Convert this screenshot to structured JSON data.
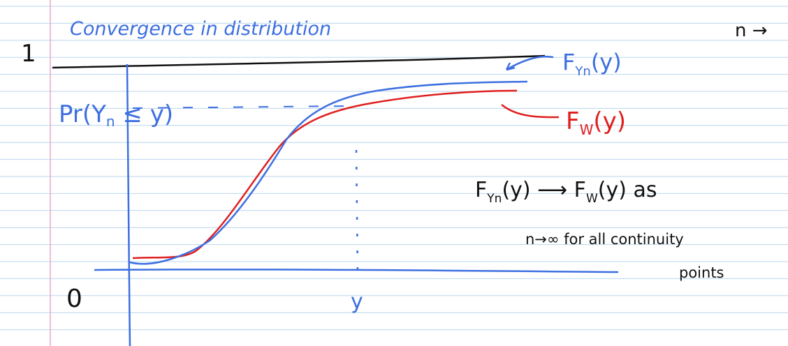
{
  "title": "Convergence in distribution",
  "corner_note": "n →",
  "axis": {
    "one": "1",
    "zero": "0",
    "y_marker": "y"
  },
  "prob_label": {
    "prefix": "Pr(Y",
    "sub": "n",
    "suffix": " ≤ y)"
  },
  "curve_labels": {
    "yn": {
      "main": "F",
      "sub": "Yn",
      "arg": "(y)"
    },
    "w": {
      "main": "F",
      "sub": "W",
      "arg": "(y)"
    }
  },
  "statement": {
    "line1": {
      "a": "F",
      "a_sub": "Yn",
      "b": "(y) ⟶ F",
      "b_sub": "W",
      "c": "(y)  as"
    },
    "line2": "n→∞ for all continuity",
    "line3": "points"
  }
}
